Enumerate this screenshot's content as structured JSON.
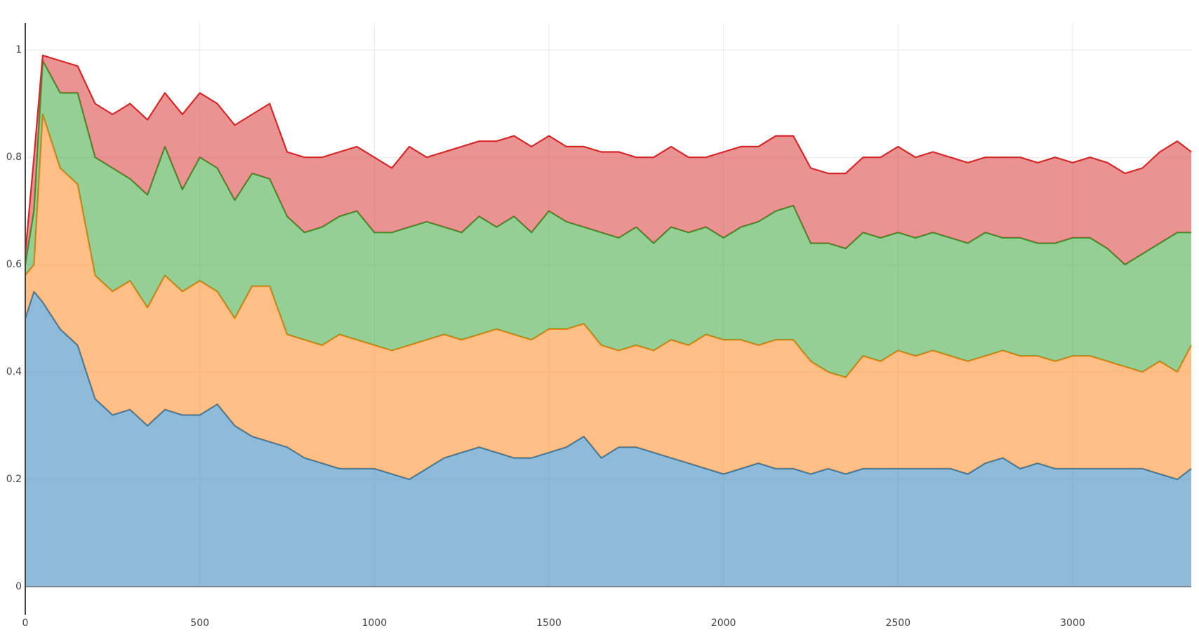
{
  "chart_data": {
    "type": "stacked-area",
    "x": [
      0,
      25,
      50,
      100,
      150,
      200,
      250,
      300,
      350,
      400,
      450,
      500,
      550,
      600,
      650,
      700,
      750,
      800,
      850,
      900,
      950,
      1000,
      1050,
      1100,
      1150,
      1200,
      1250,
      1300,
      1350,
      1400,
      1450,
      1500,
      1550,
      1600,
      1650,
      1700,
      1750,
      1800,
      1850,
      1900,
      1950,
      2000,
      2050,
      2100,
      2150,
      2200,
      2250,
      2300,
      2350,
      2400,
      2450,
      2500,
      2550,
      2600,
      2650,
      2700,
      2750,
      2800,
      2850,
      2900,
      2950,
      3000,
      3050,
      3100,
      3150,
      3200,
      3250,
      3300,
      3340
    ],
    "series": [
      {
        "color": "#1f77b4",
        "values": [
          0.5,
          0.55,
          0.53,
          0.48,
          0.45,
          0.35,
          0.32,
          0.33,
          0.3,
          0.33,
          0.32,
          0.32,
          0.34,
          0.3,
          0.28,
          0.27,
          0.26,
          0.24,
          0.23,
          0.22,
          0.22,
          0.22,
          0.21,
          0.2,
          0.22,
          0.24,
          0.25,
          0.26,
          0.25,
          0.24,
          0.24,
          0.25,
          0.26,
          0.28,
          0.24,
          0.26,
          0.26,
          0.25,
          0.24,
          0.23,
          0.22,
          0.21,
          0.22,
          0.23,
          0.22,
          0.22,
          0.21,
          0.22,
          0.21,
          0.22,
          0.22,
          0.22,
          0.22,
          0.22,
          0.22,
          0.21,
          0.23,
          0.24,
          0.22,
          0.23,
          0.22,
          0.22,
          0.22,
          0.22,
          0.22,
          0.22,
          0.21,
          0.2,
          0.22
        ]
      },
      {
        "color": "#ff7f0e",
        "values": [
          0.08,
          0.05,
          0.35,
          0.3,
          0.3,
          0.23,
          0.23,
          0.24,
          0.22,
          0.25,
          0.23,
          0.25,
          0.21,
          0.2,
          0.28,
          0.29,
          0.21,
          0.22,
          0.22,
          0.25,
          0.24,
          0.23,
          0.23,
          0.25,
          0.24,
          0.23,
          0.21,
          0.21,
          0.23,
          0.23,
          0.22,
          0.23,
          0.22,
          0.21,
          0.21,
          0.18,
          0.19,
          0.19,
          0.22,
          0.22,
          0.25,
          0.25,
          0.24,
          0.22,
          0.24,
          0.24,
          0.21,
          0.18,
          0.18,
          0.21,
          0.2,
          0.22,
          0.21,
          0.22,
          0.21,
          0.21,
          0.2,
          0.2,
          0.21,
          0.2,
          0.2,
          0.21,
          0.21,
          0.2,
          0.19,
          0.18,
          0.21,
          0.2,
          0.23
        ]
      },
      {
        "color": "#2ca02c",
        "values": [
          0.02,
          0.1,
          0.1,
          0.14,
          0.17,
          0.22,
          0.23,
          0.19,
          0.21,
          0.24,
          0.19,
          0.23,
          0.23,
          0.22,
          0.21,
          0.2,
          0.22,
          0.2,
          0.22,
          0.22,
          0.24,
          0.21,
          0.22,
          0.22,
          0.22,
          0.2,
          0.2,
          0.22,
          0.19,
          0.22,
          0.2,
          0.22,
          0.2,
          0.18,
          0.21,
          0.21,
          0.22,
          0.2,
          0.21,
          0.21,
          0.2,
          0.19,
          0.21,
          0.23,
          0.24,
          0.25,
          0.22,
          0.24,
          0.24,
          0.23,
          0.23,
          0.22,
          0.22,
          0.22,
          0.22,
          0.22,
          0.23,
          0.21,
          0.22,
          0.21,
          0.22,
          0.22,
          0.22,
          0.21,
          0.19,
          0.22,
          0.22,
          0.26,
          0.21
        ]
      },
      {
        "color": "#d62728",
        "values": [
          0.02,
          0.1,
          0.01,
          0.06,
          0.05,
          0.1,
          0.1,
          0.14,
          0.14,
          0.1,
          0.14,
          0.12,
          0.12,
          0.14,
          0.11,
          0.14,
          0.12,
          0.14,
          0.13,
          0.12,
          0.12,
          0.14,
          0.12,
          0.15,
          0.12,
          0.14,
          0.16,
          0.14,
          0.16,
          0.15,
          0.16,
          0.14,
          0.14,
          0.15,
          0.15,
          0.16,
          0.13,
          0.16,
          0.15,
          0.14,
          0.13,
          0.16,
          0.15,
          0.14,
          0.14,
          0.13,
          0.14,
          0.13,
          0.14,
          0.14,
          0.15,
          0.16,
          0.15,
          0.15,
          0.15,
          0.15,
          0.14,
          0.15,
          0.15,
          0.15,
          0.16,
          0.14,
          0.15,
          0.16,
          0.17,
          0.16,
          0.17,
          0.17,
          0.15
        ]
      }
    ],
    "xlim": [
      0,
      3340
    ],
    "ylim": [
      0,
      1.05
    ],
    "xticks": [
      0,
      500,
      1000,
      1500,
      2000,
      2500,
      3000
    ],
    "yticks": [
      0,
      0.2,
      0.4,
      0.6,
      0.8,
      1
    ],
    "grid": true
  }
}
